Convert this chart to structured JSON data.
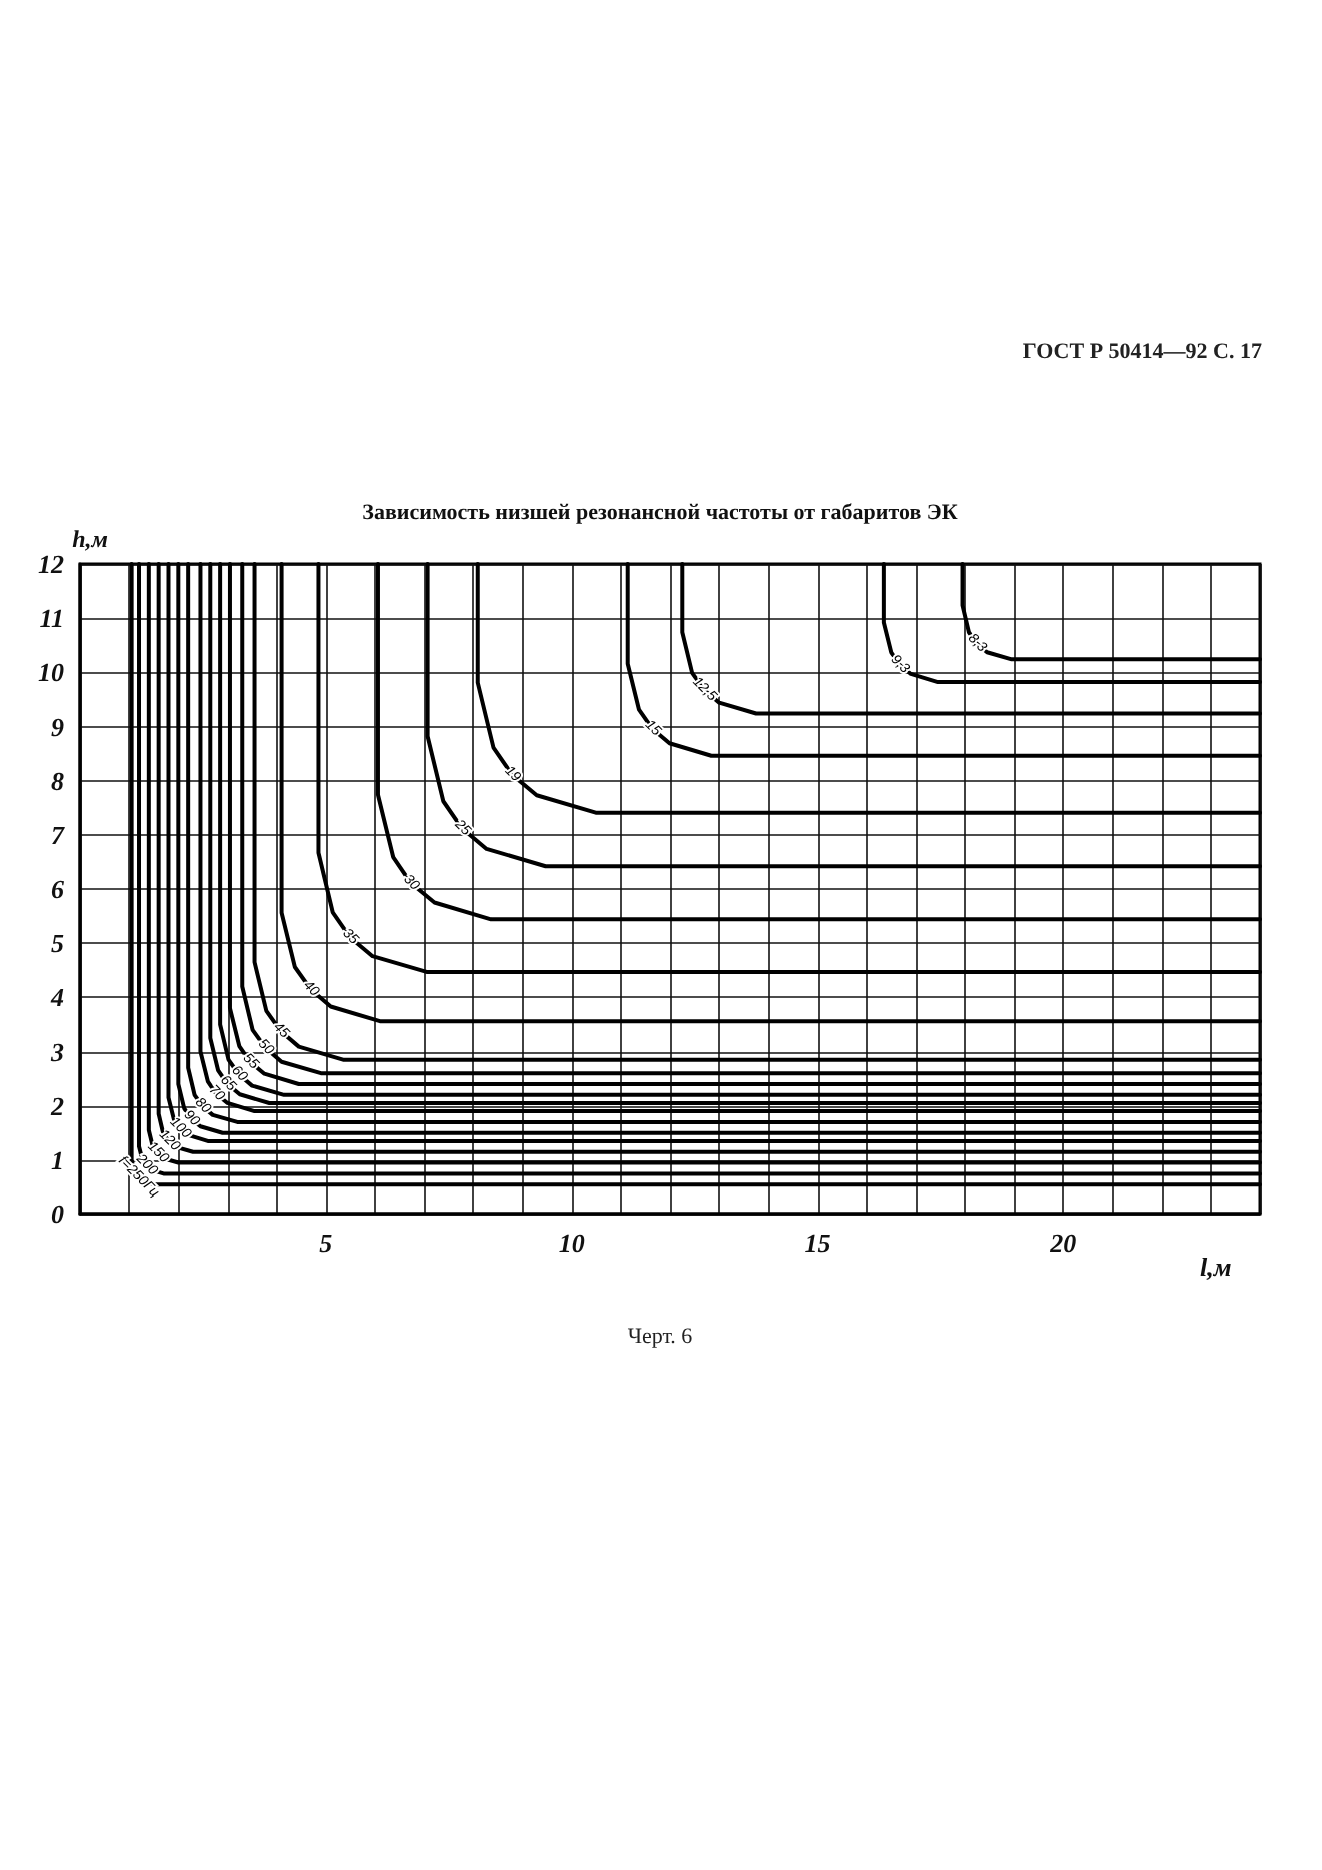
{
  "chart_data": {
    "type": "line",
    "title": "Зависимость низшей резонансной частоты от габаритов ЭК",
    "xlabel": "l,м",
    "ylabel": "h,м",
    "annotations": [
      "ГОСТ Р 50414—92 С. 17",
      "Черт. 6"
    ],
    "xlim": [
      0,
      24
    ],
    "ylim": [
      0,
      12
    ],
    "xticks": [
      {
        "value": 0,
        "label": null
      },
      {
        "value": 1,
        "label": null
      },
      {
        "value": 2,
        "label": null
      },
      {
        "value": 3,
        "label": null
      },
      {
        "value": 4,
        "label": null
      },
      5,
      {
        "value": 6,
        "label": null
      },
      {
        "value": 7,
        "label": null
      },
      {
        "value": 8,
        "label": null
      },
      {
        "value": 9,
        "label": null
      },
      10,
      {
        "value": 11,
        "label": null
      },
      {
        "value": 12,
        "label": null
      },
      {
        "value": 13,
        "label": null
      },
      {
        "value": 14,
        "label": null
      },
      15,
      {
        "value": 16,
        "label": null
      },
      {
        "value": 17,
        "label": null
      },
      {
        "value": 18,
        "label": null
      },
      {
        "value": 19,
        "label": null
      },
      20,
      {
        "value": 21,
        "label": null
      },
      {
        "value": 22,
        "label": null
      },
      {
        "value": 23,
        "label": null
      },
      {
        "value": 24,
        "label": null
      }
    ],
    "yticks": [
      0,
      1,
      2,
      3,
      4,
      5,
      6,
      7,
      8,
      9,
      10,
      11,
      12
    ],
    "grid": true,
    "marker": "none",
    "series": [
      {
        "name": "8,3",
        "color": "#000000",
        "x": [
          17.95,
          17.95,
          18.08,
          18.24,
          18.45,
          18.95,
          24
        ],
        "values": [
          12,
          11.24,
          10.74,
          10.53,
          10.37,
          10.24,
          10.24
        ]
      },
      {
        "name": "9,3",
        "color": "#000000",
        "x": [
          16.35,
          16.35,
          16.5,
          16.67,
          16.9,
          17.45,
          24
        ],
        "values": [
          12,
          10.92,
          10.37,
          10.14,
          9.97,
          9.82,
          9.82
        ]
      },
      {
        "name": "12,5",
        "color": "#000000",
        "x": [
          12.25,
          12.25,
          12.45,
          12.69,
          13.0,
          13.75,
          24
        ],
        "values": [
          12,
          10.74,
          9.99,
          9.68,
          9.44,
          9.24,
          9.24
        ]
      },
      {
        "name": "15",
        "color": "#000000",
        "x": [
          11.14,
          11.14,
          11.37,
          11.64,
          11.99,
          12.84,
          24
        ],
        "values": [
          12,
          10.16,
          9.31,
          8.96,
          8.69,
          8.46,
          8.46
        ]
      },
      {
        "name": "19",
        "color": "#000000",
        "x": [
          8.09,
          8.09,
          8.41,
          8.79,
          9.29,
          10.49,
          24
        ],
        "values": [
          12,
          9.81,
          8.61,
          8.11,
          7.73,
          7.41,
          7.41
        ]
      },
      {
        "name": "25",
        "color": "#000000",
        "x": [
          7.07,
          7.07,
          7.39,
          7.77,
          8.27,
          9.47,
          24
        ],
        "values": [
          12,
          8.82,
          7.62,
          7.12,
          6.74,
          6.42,
          6.42
        ]
      },
      {
        "name": "30",
        "color": "#000000",
        "x": [
          6.06,
          6.06,
          6.37,
          6.73,
          7.21,
          8.36,
          24
        ],
        "values": [
          12,
          7.74,
          6.59,
          6.11,
          5.75,
          5.44,
          5.44
        ]
      },
      {
        "name": "35",
        "color": "#000000",
        "x": [
          4.85,
          4.85,
          5.14,
          5.49,
          5.95,
          7.05,
          24
        ],
        "values": [
          12,
          6.67,
          5.57,
          5.11,
          4.76,
          4.47,
          4.47
        ]
      },
      {
        "name": "40",
        "color": "#000000",
        "x": [
          4.1,
          4.1,
          4.37,
          4.69,
          5.1,
          6.1,
          24
        ],
        "values": [
          12,
          5.56,
          4.56,
          4.15,
          3.83,
          3.56,
          3.56
        ]
      },
      {
        "name": "45",
        "color": "#000000",
        "x": [
          3.55,
          3.55,
          3.79,
          4.08,
          4.45,
          5.35,
          24
        ],
        "values": [
          12,
          4.65,
          3.75,
          3.38,
          3.09,
          2.85,
          2.85
        ]
      },
      {
        "name": "50",
        "color": "#000000",
        "x": [
          3.3,
          3.3,
          3.51,
          3.77,
          4.1,
          4.9,
          24
        ],
        "values": [
          12,
          4.2,
          3.4,
          3.07,
          2.81,
          2.6,
          2.6
        ]
      },
      {
        "name": "55",
        "color": "#000000",
        "x": [
          3.05,
          3.05,
          3.24,
          3.46,
          3.75,
          4.45,
          24
        ],
        "values": [
          12,
          3.8,
          3.1,
          2.81,
          2.59,
          2.4,
          2.4
        ]
      },
      {
        "name": "60",
        "color": "#000000",
        "x": [
          2.85,
          2.85,
          3.02,
          3.23,
          3.5,
          4.15,
          24
        ],
        "values": [
          12,
          3.5,
          2.85,
          2.58,
          2.37,
          2.2,
          2.2
        ]
      },
      {
        "name": "65",
        "color": "#000000",
        "x": [
          2.65,
          2.65,
          2.81,
          3.0,
          3.25,
          3.85,
          24
        ],
        "values": [
          12,
          3.25,
          2.65,
          2.4,
          2.21,
          2.05,
          2.05
        ]
      },
      {
        "name": "70",
        "color": "#000000",
        "x": [
          2.45,
          2.45,
          2.6,
          2.77,
          3.0,
          3.55,
          24
        ],
        "values": [
          12,
          3.0,
          2.45,
          2.22,
          2.05,
          1.9,
          1.9
        ]
      },
      {
        "name": "80",
        "color": "#000000",
        "x": [
          2.2,
          2.2,
          2.33,
          2.49,
          2.7,
          3.2,
          24
        ],
        "values": [
          12,
          2.7,
          2.2,
          1.99,
          1.83,
          1.7,
          1.7
        ]
      },
      {
        "name": "90",
        "color": "#000000",
        "x": [
          2.0,
          2.0,
          2.12,
          2.26,
          2.45,
          2.9,
          24
        ],
        "values": [
          12,
          2.4,
          1.95,
          1.76,
          1.62,
          1.5,
          1.5
        ]
      },
      {
        "name": "100",
        "color": "#000000",
        "x": [
          1.8,
          1.8,
          1.91,
          2.03,
          2.2,
          2.6,
          24
        ],
        "values": [
          12,
          2.15,
          1.75,
          1.58,
          1.46,
          1.35,
          1.35
        ]
      },
      {
        "name": "120",
        "color": "#000000",
        "x": [
          1.6,
          1.6,
          1.69,
          1.81,
          1.95,
          2.3,
          24
        ],
        "values": [
          12,
          1.85,
          1.5,
          1.35,
          1.24,
          1.15,
          1.15
        ]
      },
      {
        "name": "150",
        "color": "#000000",
        "x": [
          1.4,
          1.4,
          1.48,
          1.58,
          1.7,
          2.0,
          24
        ],
        "values": [
          12,
          1.55,
          1.25,
          1.13,
          1.03,
          0.95,
          0.95
        ]
      },
      {
        "name": "200",
        "color": "#000000",
        "x": [
          1.2,
          1.2,
          1.27,
          1.35,
          1.45,
          1.7,
          24
        ],
        "values": [
          12,
          1.25,
          1.0,
          0.9,
          0.82,
          0.75,
          0.75
        ]
      },
      {
        "name": "f=250Гц",
        "color": "#000000",
        "x": [
          1.05,
          1.05,
          1.11,
          1.18,
          1.28,
          1.5,
          24
        ],
        "values": [
          12,
          1.0,
          0.78,
          0.68,
          0.61,
          0.55,
          0.55
        ]
      }
    ]
  }
}
